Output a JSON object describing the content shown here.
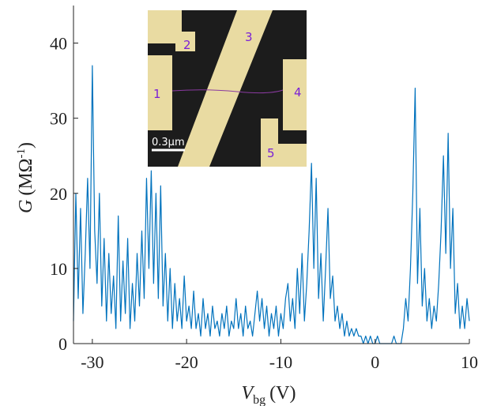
{
  "chart_data": {
    "type": "line",
    "xlabel": {
      "symbol": "V",
      "subscript": "bg",
      "unit": "(V)"
    },
    "ylabel": {
      "symbol": "G",
      "unit": "(MΩ",
      "superscript": "-1",
      "close": ")"
    },
    "color": "#0072bd",
    "xlim": [
      -32,
      10
    ],
    "xticks": [
      -30,
      -20,
      -10,
      0,
      10
    ],
    "ylim": [
      0,
      45
    ],
    "yticks": [
      0,
      10,
      20,
      30,
      40
    ],
    "x": [
      -32,
      -31.75,
      -31.5,
      -31.25,
      -31,
      -30.75,
      -30.5,
      -30.25,
      -30,
      -29.75,
      -29.5,
      -29.25,
      -29,
      -28.75,
      -28.5,
      -28.25,
      -28,
      -27.75,
      -27.5,
      -27.25,
      -27,
      -26.75,
      -26.5,
      -26.25,
      -26,
      -25.75,
      -25.5,
      -25.25,
      -25,
      -24.75,
      -24.5,
      -24.25,
      -24,
      -23.75,
      -23.5,
      -23.25,
      -23,
      -22.75,
      -22.5,
      -22.25,
      -22,
      -21.75,
      -21.5,
      -21.25,
      -21,
      -20.75,
      -20.5,
      -20.25,
      -20,
      -19.75,
      -19.5,
      -19.25,
      -19,
      -18.75,
      -18.5,
      -18.25,
      -18,
      -17.75,
      -17.5,
      -17.25,
      -17,
      -16.75,
      -16.5,
      -16.25,
      -16,
      -15.75,
      -15.5,
      -15.25,
      -15,
      -14.75,
      -14.5,
      -14.25,
      -14,
      -13.75,
      -13.5,
      -13.25,
      -13,
      -12.75,
      -12.5,
      -12.25,
      -12,
      -11.75,
      -11.5,
      -11.25,
      -11,
      -10.75,
      -10.5,
      -10.25,
      -10,
      -9.75,
      -9.5,
      -9.25,
      -9,
      -8.75,
      -8.5,
      -8.25,
      -8,
      -7.75,
      -7.5,
      -7.25,
      -7,
      -6.75,
      -6.5,
      -6.25,
      -6,
      -5.75,
      -5.5,
      -5.25,
      -5,
      -4.75,
      -4.5,
      -4.25,
      -4,
      -3.75,
      -3.5,
      -3.25,
      -3,
      -2.75,
      -2.5,
      -2.25,
      -2,
      -1.75,
      -1.5,
      -1.25,
      -1,
      -0.75,
      -0.5,
      -0.25,
      0,
      0.25,
      0.5,
      0.75,
      1,
      1.25,
      1.5,
      1.75,
      2,
      2.25,
      2.5,
      2.75,
      3,
      3.25,
      3.5,
      3.75,
      4,
      4.25,
      4.5,
      4.75,
      5,
      5.25,
      5.5,
      5.75,
      6,
      6.25,
      6.5,
      6.75,
      7,
      7.25,
      7.5,
      7.75,
      8,
      8.25,
      8.5,
      8.75,
      9,
      9.25,
      9.5,
      9.75,
      10
    ],
    "values": [
      3,
      20,
      6,
      18,
      4,
      12,
      22,
      10,
      37,
      15,
      8,
      20,
      5,
      14,
      3,
      12,
      4,
      9,
      2,
      17,
      3,
      11,
      4,
      14,
      2,
      8,
      3,
      12,
      5,
      15,
      6,
      22,
      10,
      23,
      8,
      20,
      6,
      21,
      5,
      12,
      3,
      10,
      2,
      8,
      3,
      6,
      2,
      9,
      3,
      5,
      2,
      7,
      2,
      4,
      1,
      6,
      2,
      4,
      1,
      5,
      2,
      3,
      1,
      4,
      2,
      5,
      1,
      3,
      2,
      6,
      2,
      4,
      1,
      5,
      2,
      3,
      1,
      4,
      7,
      3,
      6,
      2,
      5,
      1,
      4,
      2,
      5,
      1,
      4,
      2,
      6,
      8,
      3,
      6,
      2,
      10,
      4,
      12,
      3,
      8,
      15,
      24,
      10,
      22,
      6,
      12,
      3,
      10,
      18,
      6,
      9,
      3,
      5,
      2,
      4,
      1,
      3,
      1,
      2,
      1,
      2,
      1,
      1,
      0,
      1,
      0,
      1,
      0,
      0,
      1,
      0,
      0,
      0,
      0,
      0,
      0,
      1,
      0,
      0,
      0,
      2,
      6,
      3,
      10,
      20,
      34,
      8,
      18,
      5,
      10,
      3,
      6,
      2,
      5,
      3,
      8,
      15,
      25,
      12,
      28,
      10,
      18,
      4,
      8,
      2,
      5,
      2,
      6,
      3
    ],
    "inset": {
      "labels": [
        "1",
        "2",
        "3",
        "4",
        "5"
      ],
      "scale_bar": "0.3μm"
    }
  }
}
